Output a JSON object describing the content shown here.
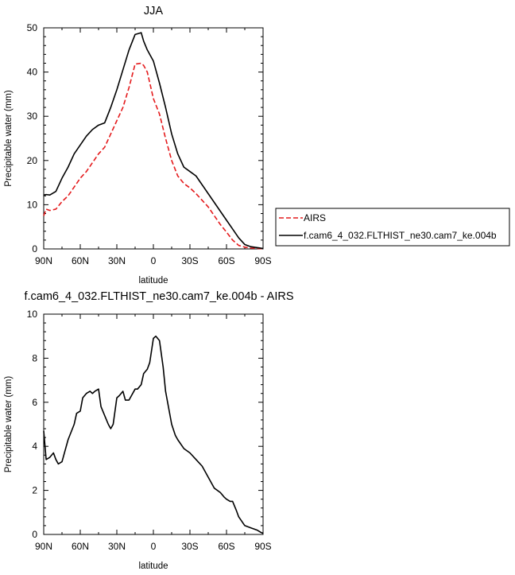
{
  "chart_data": [
    {
      "type": "line",
      "title": "JJA",
      "xlabel": "latitude",
      "ylabel": "Precipitable water (mm)",
      "xlim": [
        90,
        -90
      ],
      "ylim": [
        0,
        50
      ],
      "x_ticks": [
        90,
        60,
        30,
        0,
        -30,
        -60,
        -90
      ],
      "x_tick_labels": [
        "90N",
        "60N",
        "30N",
        "0",
        "30S",
        "60S",
        "90S"
      ],
      "y_ticks": [
        0,
        10,
        20,
        30,
        40,
        50
      ],
      "y_tick_labels": [
        "0",
        "10",
        "20",
        "30",
        "40",
        "50"
      ],
      "legend_position": "right",
      "series": [
        {
          "name": "AIRS",
          "color": "#e41a1c",
          "dash": "dashed",
          "x": [
            90,
            88,
            85,
            80,
            75,
            70,
            65,
            60,
            55,
            50,
            45,
            40,
            35,
            30,
            25,
            20,
            15,
            10,
            8,
            5,
            0,
            -5,
            -10,
            -15,
            -20,
            -25,
            -30,
            -35,
            -40,
            -45,
            -50,
            -55,
            -60,
            -65,
            -70,
            -75,
            -80,
            -85,
            -90
          ],
          "y": [
            7.5,
            9,
            8.7,
            9,
            10.7,
            12,
            14,
            16,
            17.5,
            19.5,
            21.5,
            23,
            26,
            29,
            32,
            36.5,
            41.8,
            42,
            41.5,
            40,
            34,
            30.5,
            25,
            20,
            16.5,
            14.8,
            13.8,
            12.5,
            11,
            9.5,
            7.5,
            5.5,
            3.8,
            2,
            0.8,
            0.4,
            0.2,
            0.1,
            0.05
          ]
        },
        {
          "name": "f.cam6_4_032.FLTHIST_ne30.cam7_ke.004b",
          "color": "#000000",
          "dash": "solid",
          "x": [
            90,
            88,
            85,
            80,
            75,
            70,
            65,
            60,
            55,
            50,
            45,
            40,
            35,
            30,
            25,
            20,
            15,
            10,
            8,
            5,
            0,
            -5,
            -10,
            -15,
            -20,
            -25,
            -30,
            -35,
            -40,
            -45,
            -50,
            -55,
            -60,
            -65,
            -70,
            -75,
            -80,
            -85,
            -90
          ],
          "y": [
            12.2,
            12.3,
            12.2,
            13,
            16,
            18.5,
            21.5,
            23.5,
            25.5,
            27,
            28,
            28.5,
            32,
            36,
            40.5,
            45,
            48.5,
            48.9,
            47,
            45,
            42.5,
            37.5,
            32,
            26,
            21.5,
            18.5,
            17.5,
            16.5,
            14.5,
            12.5,
            10.5,
            8.5,
            6.5,
            4.5,
            2.5,
            1,
            0.5,
            0.3,
            0.1
          ]
        }
      ]
    },
    {
      "type": "line",
      "title": "f.cam6_4_032.FLTHIST_ne30.cam7_ke.004b - AIRS",
      "xlabel": "latitude",
      "ylabel": "Precipitable water (mm)",
      "xlim": [
        90,
        -90
      ],
      "ylim": [
        0,
        10
      ],
      "x_ticks": [
        90,
        60,
        30,
        0,
        -30,
        -60,
        -90
      ],
      "x_tick_labels": [
        "90N",
        "60N",
        "30N",
        "0",
        "30S",
        "60S",
        "90S"
      ],
      "y_ticks": [
        0,
        2,
        4,
        6,
        8,
        10
      ],
      "y_tick_labels": [
        "0",
        "2",
        "4",
        "6",
        "8",
        "10"
      ],
      "series": [
        {
          "color": "#000000",
          "dash": "solid",
          "x": [
            90,
            88,
            85,
            82,
            80,
            78,
            75,
            70,
            65,
            63,
            60,
            58,
            55,
            52,
            50,
            48,
            45,
            43,
            40,
            37,
            35,
            33,
            30,
            28,
            25,
            23,
            20,
            18,
            15,
            13,
            10,
            8,
            5,
            3,
            0,
            -2,
            -5,
            -8,
            -10,
            -13,
            -15,
            -18,
            -20,
            -25,
            -30,
            -35,
            -40,
            -45,
            -50,
            -55,
            -58,
            -60,
            -63,
            -65,
            -68,
            -70,
            -75,
            -80,
            -85,
            -88,
            -90
          ],
          "y": [
            4.7,
            3.4,
            3.5,
            3.7,
            3.4,
            3.2,
            3.3,
            4.3,
            5,
            5.5,
            5.6,
            6.2,
            6.4,
            6.5,
            6.4,
            6.5,
            6.6,
            5.8,
            5.4,
            5,
            4.8,
            5,
            6.2,
            6.3,
            6.5,
            6.1,
            6.1,
            6.3,
            6.6,
            6.6,
            6.8,
            7.3,
            7.5,
            7.8,
            8.9,
            9,
            8.8,
            7.6,
            6.5,
            5.6,
            5,
            4.5,
            4.3,
            3.9,
            3.7,
            3.4,
            3.1,
            2.6,
            2.1,
            1.9,
            1.7,
            1.6,
            1.5,
            1.5,
            1.1,
            0.8,
            0.4,
            0.3,
            0.2,
            0.1,
            0.05
          ]
        }
      ]
    }
  ]
}
